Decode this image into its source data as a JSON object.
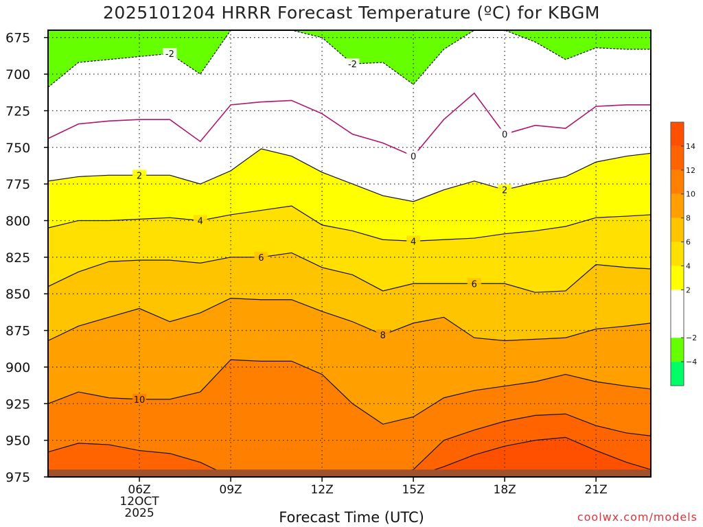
{
  "chart_data": {
    "type": "heatmap",
    "title": "2025101204 HRRR Forecast Temperature (ºC) for KBGM",
    "xlabel": "Forecast Time (UTC)",
    "credit": "coolwx.com/models",
    "y_axis": {
      "label": "",
      "units": "hPa",
      "inverted": true,
      "range": [
        975,
        670
      ],
      "ticks": [
        675,
        700,
        725,
        750,
        775,
        800,
        825,
        850,
        875,
        900,
        925,
        950,
        975
      ]
    },
    "x_axis": {
      "range_hours_utc": [
        3,
        22.8
      ],
      "ticks": [
        {
          "hour": 6,
          "label": "06Z",
          "sub1": "12OCT",
          "sub2": "2025"
        },
        {
          "hour": 9,
          "label": "09Z",
          "sub1": "",
          "sub2": ""
        },
        {
          "hour": 12,
          "label": "12Z",
          "sub1": "",
          "sub2": ""
        },
        {
          "hour": 15,
          "label": "15Z",
          "sub1": "",
          "sub2": ""
        },
        {
          "hour": 18,
          "label": "18Z",
          "sub1": "",
          "sub2": ""
        },
        {
          "hour": 21,
          "label": "21Z",
          "sub1": "",
          "sub2": ""
        }
      ]
    },
    "grid": true,
    "colorbar": {
      "placement": "right",
      "ticks": [
        -4,
        -2,
        2,
        4,
        6,
        8,
        10,
        12,
        14
      ],
      "bins": [
        {
          "from": -6,
          "to": -4,
          "color": "#00ff66"
        },
        {
          "from": -4,
          "to": -2,
          "color": "#66ff00"
        },
        {
          "from": -2,
          "to": 2,
          "color": "#ffffff"
        },
        {
          "from": 2,
          "to": 4,
          "color": "#ffff00"
        },
        {
          "from": 4,
          "to": 6,
          "color": "#ffe000"
        },
        {
          "from": 6,
          "to": 8,
          "color": "#ffc400"
        },
        {
          "from": 8,
          "to": 10,
          "color": "#ffa000"
        },
        {
          "from": 10,
          "to": 12,
          "color": "#ff8000"
        },
        {
          "from": 12,
          "to": 14,
          "color": "#ff6400"
        },
        {
          "from": 14,
          "to": 16,
          "color": "#ff5000"
        }
      ]
    },
    "hours": [
      3,
      4,
      5,
      6,
      7,
      8,
      9,
      10,
      11,
      12,
      13,
      14,
      15,
      16,
      17,
      18,
      19,
      20,
      21,
      22,
      22.8
    ],
    "surface_pressure": 970,
    "isotherms": [
      {
        "value": -2,
        "label": "-2",
        "pressures": [
          709,
          692,
          690,
          688,
          686,
          700,
          670,
          670,
          670,
          675,
          693,
          692,
          707,
          683,
          670,
          670,
          678,
          690,
          682,
          683,
          683
        ],
        "labels_at": [
          7,
          13
        ]
      },
      {
        "value": 0,
        "label": "0",
        "pressures": [
          744,
          734,
          732,
          731,
          731,
          746,
          721,
          719,
          718,
          727,
          741,
          747,
          756,
          731,
          713,
          741,
          735,
          737,
          722,
          721,
          721
        ],
        "labels_at": [
          15,
          18
        ]
      },
      {
        "value": 2,
        "label": "2",
        "pressures": [
          773,
          770,
          769,
          769,
          769,
          775,
          766,
          751,
          756,
          767,
          775,
          783,
          787,
          779,
          773,
          779,
          774,
          770,
          760,
          756,
          754
        ],
        "labels_at": [
          6,
          18
        ]
      },
      {
        "value": 4,
        "label": "4",
        "pressures": [
          805,
          800,
          800,
          799,
          798,
          800,
          796,
          793,
          790,
          803,
          807,
          813,
          814,
          813,
          812,
          809,
          807,
          804,
          798,
          797,
          796
        ],
        "labels_at": [
          8,
          15
        ]
      },
      {
        "value": 6,
        "label": "6",
        "pressures": [
          845,
          835,
          828,
          827,
          827,
          829,
          825,
          825,
          822,
          832,
          837,
          848,
          843,
          843,
          843,
          843,
          849,
          848,
          830,
          832,
          833
        ],
        "labels_at": [
          10,
          17
        ]
      },
      {
        "value": 8,
        "label": "8",
        "pressures": [
          882,
          872,
          866,
          860,
          869,
          863,
          853,
          854,
          854,
          862,
          869,
          878,
          870,
          866,
          880,
          882,
          881,
          880,
          874,
          872,
          870
        ],
        "labels_at": [
          14
        ]
      },
      {
        "value": 10,
        "label": "10",
        "pressures": [
          925,
          917,
          921,
          922,
          922,
          917,
          895,
          896,
          896,
          905,
          925,
          939,
          934,
          921,
          916,
          913,
          910,
          905,
          910,
          913,
          915
        ],
        "labels_at": [
          6
        ]
      },
      {
        "value": 12,
        "label": "",
        "pressures": [
          958,
          952,
          953,
          957,
          959,
          965,
          975,
          975,
          975,
          975,
          975,
          975,
          970,
          950,
          943,
          937,
          933,
          932,
          940,
          945,
          947
        ],
        "labels_at": []
      },
      {
        "value": 14,
        "label": "",
        "pressures": [
          975,
          975,
          975,
          975,
          975,
          975,
          975,
          975,
          975,
          975,
          975,
          975,
          975,
          968,
          960,
          954,
          950,
          948,
          957,
          965,
          970
        ],
        "labels_at": []
      }
    ]
  }
}
